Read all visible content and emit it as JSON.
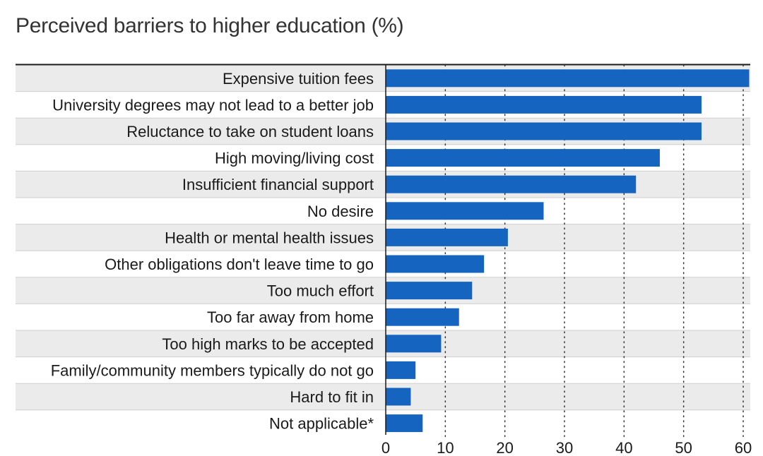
{
  "chart_data": {
    "type": "bar",
    "orientation": "horizontal",
    "title": "Perceived barriers to higher education (%)",
    "xlabel": "",
    "ylabel": "",
    "xlim": [
      0,
      60
    ],
    "xticks": [
      "0",
      "10",
      "20",
      "30",
      "40",
      "50",
      "60"
    ],
    "grid": true,
    "categories": [
      "Expensive tuition fees",
      "University degrees may not lead to a better job",
      "Reluctance to take on student loans",
      "High moving/living cost",
      "Insufficient financial support",
      "No desire",
      "Health or mental health issues",
      "Other obligations don't leave time to go",
      "Too much effort",
      "Too far away from home",
      "Too high marks to be accepted",
      "Family/community members typically do not go",
      "Hard to fit in",
      "Not applicable*"
    ],
    "values": [
      61,
      53,
      53,
      46,
      42,
      26.5,
      20.5,
      16.5,
      14.5,
      12.3,
      9.3,
      5,
      4.2,
      6.2
    ],
    "colors": {
      "bar": "#1565C0",
      "row_band": "#EBEBEB",
      "grid": "#333333",
      "axis": "#1a1a1a"
    }
  }
}
